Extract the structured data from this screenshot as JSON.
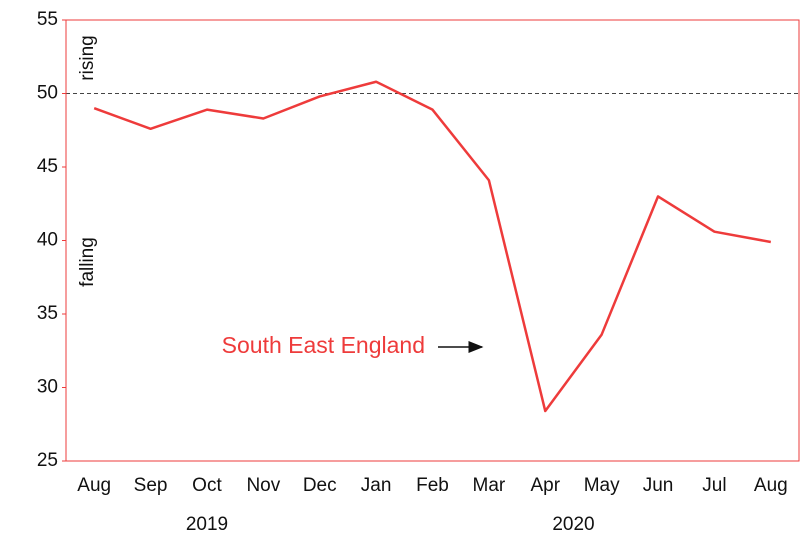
{
  "chart_data": {
    "type": "line",
    "categories": [
      "Aug",
      "Sep",
      "Oct",
      "Nov",
      "Dec",
      "Jan",
      "Feb",
      "Mar",
      "Apr",
      "May",
      "Jun",
      "Jul",
      "Aug"
    ],
    "x_groups": [
      {
        "label": "2019",
        "count": 5
      },
      {
        "label": "2020",
        "count": 8
      }
    ],
    "series": [
      {
        "name": "South East England",
        "color": "#ee3b3b",
        "values": [
          49.0,
          47.6,
          48.9,
          48.3,
          49.8,
          50.8,
          48.9,
          44.1,
          28.4,
          33.6,
          43.0,
          40.6,
          39.9
        ]
      }
    ],
    "ylim": [
      25,
      55
    ],
    "yticks": [
      25,
      30,
      35,
      40,
      45,
      50,
      55
    ],
    "reference_line": 50,
    "annotations": [
      "rising",
      "falling"
    ]
  }
}
